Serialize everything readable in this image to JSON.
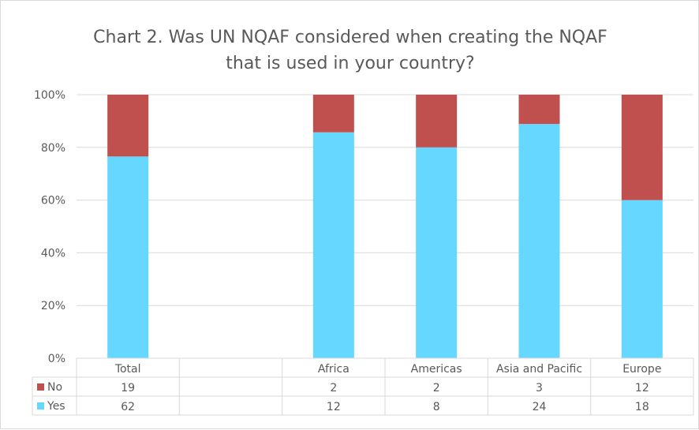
{
  "chart_data": {
    "type": "bar",
    "stacked": true,
    "percent_stacked": true,
    "title_lines": [
      "Chart 2. Was UN NQAF considered when creating the NQAF",
      "that is used in your country?"
    ],
    "categories": [
      "Total",
      "",
      "Africa",
      "Americas",
      "Asia and Pacific",
      "Europe"
    ],
    "series": [
      {
        "name": "No",
        "color": "#c0504d",
        "values": [
          19,
          null,
          2,
          2,
          3,
          12
        ]
      },
      {
        "name": "Yes",
        "color": "#66d7ff",
        "values": [
          62,
          null,
          12,
          8,
          24,
          18
        ]
      }
    ],
    "yaxis": {
      "min": 0,
      "max": 100,
      "ticks": [
        "0%",
        "20%",
        "40%",
        "60%",
        "80%",
        "100%"
      ]
    },
    "grid": true,
    "data_table": true
  }
}
